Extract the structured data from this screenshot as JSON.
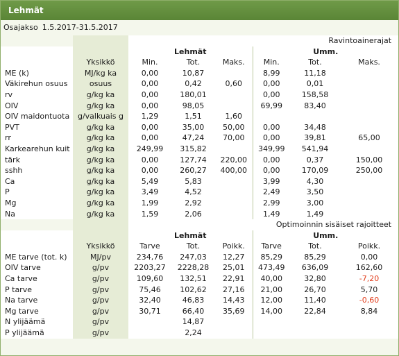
{
  "window": {
    "title": "Lehmät"
  },
  "period": {
    "label": "Osajakso",
    "value": "1.5.2017-31.5.2017"
  },
  "section1": {
    "title": "Ravintoainerajat",
    "group_left": "Lehmät",
    "group_right": "Umm.",
    "col_unit": "Yksikkö",
    "cols": [
      "Min.",
      "Tot.",
      "Maks.",
      "Min.",
      "Tot.",
      "Maks."
    ],
    "rows": [
      [
        "ME (k)",
        "MJ/kg ka",
        "0,00",
        "10,87",
        "",
        "8,99",
        "11,18",
        ""
      ],
      [
        "Väkirehun osuus",
        "osuus",
        "0,00",
        "0,42",
        "0,60",
        "0,00",
        "0,01",
        ""
      ],
      [
        "rv",
        "g/kg ka",
        "0,00",
        "180,01",
        "",
        "0,00",
        "158,58",
        ""
      ],
      [
        "OIV",
        "g/kg ka",
        "0,00",
        "98,05",
        "",
        "69,99",
        "83,40",
        ""
      ],
      [
        "OIV maidontuota",
        "g/valkuais g",
        "1,29",
        "1,51",
        "1,60",
        "",
        "",
        ""
      ],
      [
        "PVT",
        "g/kg ka",
        "0,00",
        "35,00",
        "50,00",
        "0,00",
        "34,48",
        ""
      ],
      [
        "rr",
        "g/kg ka",
        "0,00",
        "47,24",
        "70,00",
        "0,00",
        "39,81",
        "65,00"
      ],
      [
        "Karkearehun kuit",
        "g/kg ka",
        "249,99",
        "315,82",
        "",
        "349,99",
        "541,94",
        ""
      ],
      [
        "tärk",
        "g/kg ka",
        "0,00",
        "127,74",
        "220,00",
        "0,00",
        "0,37",
        "150,00"
      ],
      [
        "sshh",
        "g/kg ka",
        "0,00",
        "260,27",
        "400,00",
        "0,00",
        "170,09",
        "250,00"
      ],
      [
        "Ca",
        "g/kg ka",
        "5,49",
        "5,83",
        "",
        "3,99",
        "4,30",
        ""
      ],
      [
        "P",
        "g/kg ka",
        "3,49",
        "4,52",
        "",
        "2,49",
        "3,50",
        ""
      ],
      [
        "Mg",
        "g/kg ka",
        "1,99",
        "2,92",
        "",
        "2,99",
        "3,00",
        ""
      ],
      [
        "Na",
        "g/kg ka",
        "1,59",
        "2,06",
        "",
        "1,49",
        "1,49",
        ""
      ]
    ]
  },
  "section2": {
    "title": "Optimoinnin sisäiset rajoitteet",
    "group_left": "Lehmät",
    "group_right": "Umm.",
    "col_unit": "Yksikkö",
    "cols": [
      "Tarve",
      "Tot.",
      "Poikk.",
      "Tarve",
      "Tot.",
      "Poikk."
    ],
    "rows": [
      [
        "ME tarve (tot. k)",
        "MJ/pv",
        "234,76",
        "247,03",
        "12,27",
        "85,29",
        "85,29",
        "0,00"
      ],
      [
        "OIV tarve",
        "g/pv",
        "2203,27",
        "2228,28",
        "25,01",
        "473,49",
        "636,09",
        "162,60"
      ],
      [
        "Ca tarve",
        "g/pv",
        "109,60",
        "132,51",
        "22,91",
        "40,00",
        "32,80",
        "-7,20"
      ],
      [
        "P tarve",
        "g/pv",
        "75,46",
        "102,62",
        "27,16",
        "21,00",
        "26,70",
        "5,70"
      ],
      [
        "Na tarve",
        "g/pv",
        "32,40",
        "46,83",
        "14,43",
        "12,00",
        "11,40",
        "-0,60"
      ],
      [
        "Mg tarve",
        "g/pv",
        "30,71",
        "66,40",
        "35,69",
        "14,00",
        "22,84",
        "8,84"
      ],
      [
        "N ylijäämä",
        "g/pv",
        "",
        "14,87",
        "",
        "",
        "",
        ""
      ],
      [
        "P ylijäämä",
        "g/pv",
        "",
        "2,24",
        "",
        "",
        "",
        ""
      ]
    ],
    "negative_color": "#e23b1a"
  },
  "colors": {
    "header": "#5a8536",
    "unit_column": "#e6ecd6",
    "background": "#f4f7ec"
  }
}
